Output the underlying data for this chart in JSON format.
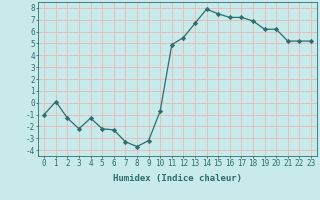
{
  "x": [
    0,
    1,
    2,
    3,
    4,
    5,
    6,
    7,
    8,
    9,
    10,
    11,
    12,
    13,
    14,
    15,
    16,
    17,
    18,
    19,
    20,
    21,
    22,
    23
  ],
  "y": [
    -1.0,
    0.1,
    -1.3,
    -2.2,
    -1.3,
    -2.2,
    -2.3,
    -3.3,
    -3.7,
    -3.2,
    -0.7,
    4.9,
    5.5,
    6.7,
    7.9,
    7.5,
    7.2,
    7.2,
    6.9,
    6.2,
    6.2,
    5.2,
    5.2,
    5.2
  ],
  "line_color": "#2d6e6e",
  "marker": "D",
  "marker_size": 2.2,
  "bg_color": "#c8eaea",
  "grid_color": "#e8b8b8",
  "xlabel": "Humidex (Indice chaleur)",
  "xlim": [
    -0.5,
    23.5
  ],
  "ylim": [
    -4.5,
    8.5
  ],
  "yticks": [
    -4,
    -3,
    -2,
    -1,
    0,
    1,
    2,
    3,
    4,
    5,
    6,
    7,
    8
  ],
  "xticks": [
    0,
    1,
    2,
    3,
    4,
    5,
    6,
    7,
    8,
    9,
    10,
    11,
    12,
    13,
    14,
    15,
    16,
    17,
    18,
    19,
    20,
    21,
    22,
    23
  ],
  "tick_color": "#2d6e6e",
  "label_fontsize": 6.5,
  "tick_fontsize": 5.5
}
